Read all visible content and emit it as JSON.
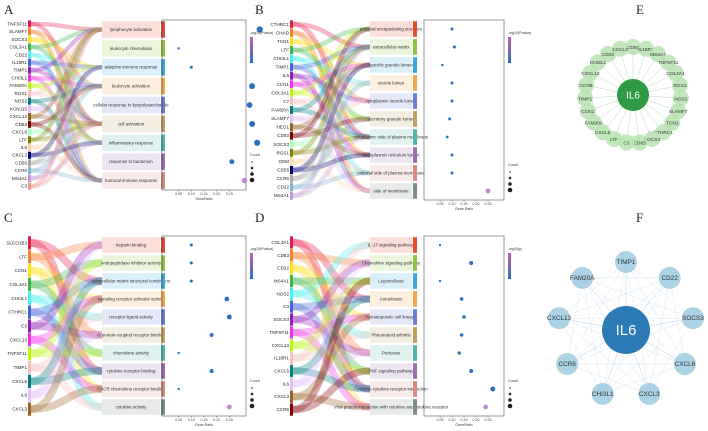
{
  "colors": {
    "network_E": "#2e9a45",
    "network_F": "#2c7bb6",
    "dot": "#2b6fc2"
  },
  "panel_labels": [
    "A",
    "B",
    "C",
    "D",
    "E",
    "F"
  ],
  "chart_data": [
    {
      "panel": "A",
      "type": "scatter",
      "genes": [
        "TNFSF11",
        "SLAMF7",
        "SOCS3",
        "COL3A1",
        "CD22",
        "IL18R1",
        "TIMP1",
        "CHI3L1",
        "FAM20A",
        "RGS1",
        "NOS2",
        "KCNJ15",
        "CXCL13",
        "CD83",
        "CXCL6",
        "LTF",
        "IL6",
        "CXCL3",
        "CD55",
        "CCR6",
        "MS4A1",
        "C3"
      ],
      "terms": [
        "lymphocyte activation",
        "leukocyte chemotaxis",
        "adaptive immune response",
        "leukocyte activation",
        "cellular response to lipopolysaccharide",
        "cell activation",
        "inflammatory response",
        "response to bacterium",
        "humoral immune response"
      ],
      "values": [
        0.37,
        0.05,
        0.1,
        0.34,
        0.33,
        0.34,
        0.36,
        0.26,
        0.31
      ],
      "xlabel": "GeneRatio",
      "legend_title": "-log10(Pvalue)",
      "size_title": "Count"
    },
    {
      "panel": "B",
      "type": "scatter",
      "genes": [
        "CTHRC1",
        "CHAD",
        "TCN1",
        "LTF",
        "CHI3L1",
        "TIMP1",
        "IL6",
        "CCN1",
        "COL3A1",
        "C7",
        "FAM20A",
        "SLAMF7",
        "HEG1",
        "CD83",
        "SOCS3",
        "RGS1",
        "GEM",
        "CD55",
        "CCR6",
        "CD22",
        "MS4A1"
      ],
      "terms": [
        "external encapsulating structure",
        "extracellular matrix",
        "specific granule lumen",
        "vesicle lumen",
        "cytoplasmic vesicle lumen",
        "secretory granule lumen",
        "cytoplasmic side of plasma membrane",
        "endoplasmic reticulum lumen",
        "external side of plasma membrane",
        "side of membrane"
      ],
      "values": [
        0.1,
        0.11,
        0.06,
        0.1,
        0.1,
        0.09,
        0.08,
        0.1,
        0.1,
        0.25
      ],
      "xlabel": "Gene Ratio",
      "legend_title": "-log10(Pvalue)",
      "size_title": "Count"
    },
    {
      "panel": "C",
      "type": "scatter",
      "genes": [
        "SLCO1B3",
        "LTF",
        "CCN1",
        "COL3A1",
        "CHI3L1",
        "CTHRC1",
        "C3",
        "CXCL13",
        "TNFSF11",
        "TIMP1",
        "CXCL6",
        "IL6",
        "CXCL3"
      ],
      "terms": [
        "heparin binding",
        "endopeptidase inhibitor activity",
        "extracellular matrix structural constituent",
        "signaling receptor activator activity",
        "receptor ligand activity",
        "G protein-coupled receptor binding",
        "chemokine activity",
        "cytokine receptor binding",
        "CXCR chemokine receptor binding",
        "cytokine activity"
      ],
      "values": [
        0.1,
        0.1,
        0.1,
        0.24,
        0.25,
        0.18,
        0.05,
        0.18,
        0.05,
        0.25
      ],
      "xlabel": "Gene Ratio",
      "legend_title": "-log10(Pvalue)",
      "size_title": "Count"
    },
    {
      "panel": "D",
      "type": "scatter",
      "genes": [
        "COL3A1",
        "CD83",
        "CD22",
        "MS4A1",
        "NOS2",
        "C3",
        "SOCS3",
        "TNFSF11",
        "CXCL13",
        "IL18R1",
        "CXCL6",
        "IL6",
        "CXCL3",
        "CCR6"
      ],
      "terms": [
        "IL-17 signaling pathway",
        "Chemokine signaling pathway",
        "Legionellosis",
        "Amoebiasis",
        "Hematopoietic cell lineage",
        "Rheumatoid arthritis",
        "Pertussis",
        "TNF signaling pathway",
        "Cytokine-cytokine receptor interaction",
        "Viral protein interaction with cytokine and cytokine receptor"
      ],
      "values": [
        0.05,
        0.18,
        0.05,
        0.14,
        0.15,
        0.14,
        0.13,
        0.18,
        0.27,
        0.24
      ],
      "xlabel": "GeneRatio",
      "legend_title": "-log10(p)",
      "size_title": "Count"
    }
  ],
  "network_E": {
    "center": "IL6",
    "nodes": [
      "CD55",
      "IL18R1",
      "MS4A1",
      "TNFSF11",
      "COL3A1",
      "RGS1",
      "NOS2",
      "SLAMF7",
      "TCN1",
      "CTHRC1",
      "SOCS3",
      "CD83",
      "C3",
      "LTF",
      "CXCL6",
      "FAM20A",
      "CCN1",
      "TIMP1",
      "CCN6",
      "CXCL13",
      "CHI3L1",
      "CD22",
      "CXCL3"
    ]
  },
  "network_F": {
    "center": "IL6",
    "nodes": [
      "TIMP1",
      "CD22",
      "SOCS3",
      "CXCL6",
      "CXCL3",
      "CHI3L1",
      "CCR6",
      "CXCL13",
      "FAM20A"
    ]
  }
}
